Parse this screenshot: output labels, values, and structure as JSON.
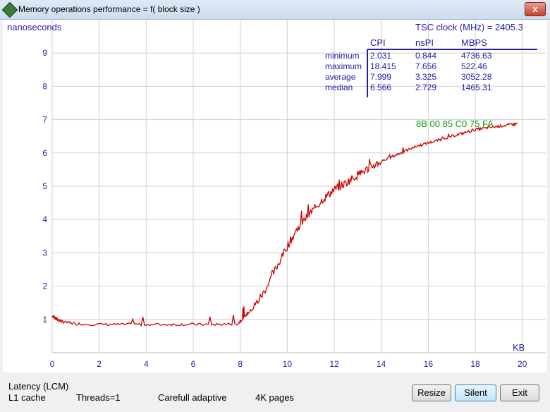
{
  "window": {
    "title": "Memory operations performance = f( block size )",
    "close_label": "x"
  },
  "chart_data": {
    "type": "line",
    "ylabel": "nanoseconds",
    "xlabel": "KB",
    "x_ticks": [
      "0",
      "2",
      "4",
      "6",
      "8",
      "10",
      "12",
      "14",
      "16",
      "18",
      "20"
    ],
    "y_ticks": [
      "1",
      "2",
      "3",
      "4",
      "5",
      "6",
      "7",
      "8",
      "9"
    ],
    "xlim": [
      0,
      21
    ],
    "ylim": [
      0,
      10
    ],
    "tsc_clock": "TSC clock (MHz)  = 2405.3",
    "stats": {
      "columns": [
        "CPI",
        "nsPI",
        "MBPS"
      ],
      "rows": [
        {
          "label": "minimum",
          "values": [
            "2.031",
            "0.844",
            "4736.63"
          ]
        },
        {
          "label": "maximum",
          "values": [
            "18.415",
            "7.656",
            "522.46"
          ]
        },
        {
          "label": "average",
          "values": [
            "7.999",
            "3.325",
            "3052.28"
          ]
        },
        {
          "label": "median",
          "values": [
            "6.566",
            "2.729",
            "1465.31"
          ]
        }
      ]
    },
    "annotation": "8B 00 85 C0 75 FA",
    "series": [
      {
        "color": "#cc0000",
        "x": [
          0,
          0.1,
          0.3,
          0.5,
          1,
          2,
          3,
          4,
          5,
          6,
          7,
          7.9,
          8.2,
          8.5,
          9,
          9.5,
          10,
          10.5,
          11,
          11.5,
          12,
          12.5,
          13,
          13.5,
          14,
          14.5,
          15,
          15.5,
          16,
          16.5,
          17,
          17.5,
          18,
          18.5,
          19,
          19.5,
          19.8
        ],
        "y": [
          1.1,
          1.05,
          0.97,
          0.92,
          0.87,
          0.85,
          0.85,
          0.85,
          0.85,
          0.85,
          0.85,
          0.87,
          1.1,
          1.3,
          1.8,
          2.5,
          3.2,
          3.8,
          4.2,
          4.6,
          4.9,
          5.1,
          5.35,
          5.55,
          5.75,
          5.9,
          6.05,
          6.2,
          6.3,
          6.4,
          6.5,
          6.6,
          6.7,
          6.75,
          6.8,
          6.85,
          6.88
        ]
      }
    ]
  },
  "footer": {
    "latency": "Latency (LCM)",
    "cache": "L1 cache",
    "threads": "Threads=1",
    "mode": "Carefull adaptive",
    "pages": "4K pages"
  },
  "buttons": {
    "resize": "Resize",
    "silent": "Silent",
    "exit": "Exit"
  }
}
